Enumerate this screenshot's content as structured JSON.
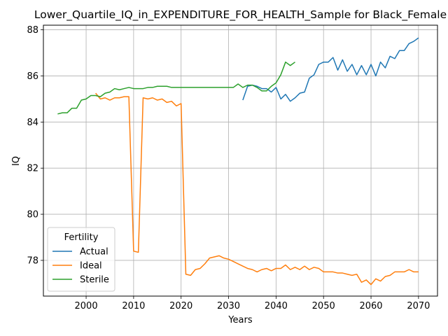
{
  "chart_data": {
    "type": "line",
    "title": "Lower_Quartile_IQ_in_EXPENDITURE_FOR_HEALTH_Sample for Black_Female",
    "xlabel": "Years",
    "ylabel": "IQ",
    "xlim": [
      1991,
      2074
    ],
    "ylim": [
      76.45,
      88.2
    ],
    "x_ticks": [
      2000,
      2010,
      2020,
      2030,
      2040,
      2050,
      2060,
      2070
    ],
    "y_ticks": [
      78,
      80,
      82,
      84,
      86,
      88
    ],
    "grid": true,
    "legend": {
      "title": "Fertility",
      "placement": "lower-left"
    },
    "series": [
      {
        "name": "Actual",
        "color": "#1f77b4",
        "x": [
          2033,
          2034,
          2035,
          2036,
          2037,
          2038,
          2039,
          2040,
          2041,
          2042,
          2043,
          2044,
          2045,
          2046,
          2047,
          2048,
          2049,
          2050,
          2051,
          2052,
          2053,
          2054,
          2055,
          2056,
          2057,
          2058,
          2059,
          2060,
          2061,
          2062,
          2063,
          2064,
          2065,
          2066,
          2067,
          2068,
          2069,
          2070
        ],
        "y": [
          84.95,
          85.55,
          85.6,
          85.55,
          85.45,
          85.45,
          85.3,
          85.5,
          85.0,
          85.2,
          84.9,
          85.05,
          85.25,
          85.3,
          85.9,
          86.05,
          86.5,
          86.6,
          86.6,
          86.8,
          86.25,
          86.7,
          86.2,
          86.5,
          86.05,
          86.45,
          86.05,
          86.5,
          86.0,
          86.6,
          86.35,
          86.85,
          86.75,
          87.1,
          87.1,
          87.4,
          87.5,
          87.65
        ]
      },
      {
        "name": "Ideal",
        "color": "#ff7f0e",
        "x": [
          2002,
          2003,
          2004,
          2005,
          2006,
          2007,
          2008,
          2009,
          2010,
          2011,
          2012,
          2013,
          2014,
          2015,
          2016,
          2017,
          2018,
          2019,
          2020,
          2021,
          2022,
          2023,
          2024,
          2025,
          2026,
          2027,
          2028,
          2029,
          2030,
          2031,
          2032,
          2033,
          2034,
          2035,
          2036,
          2037,
          2038,
          2039,
          2040,
          2041,
          2042,
          2043,
          2044,
          2045,
          2046,
          2047,
          2048,
          2049,
          2050,
          2051,
          2052,
          2053,
          2054,
          2055,
          2056,
          2057,
          2058,
          2059,
          2060,
          2061,
          2062,
          2063,
          2064,
          2065,
          2066,
          2067,
          2068,
          2069,
          2070
        ],
        "y": [
          85.25,
          85.0,
          85.05,
          84.95,
          85.05,
          85.05,
          85.1,
          85.1,
          78.4,
          78.35,
          85.05,
          85.0,
          85.05,
          84.95,
          85.0,
          84.85,
          84.9,
          84.7,
          84.8,
          77.4,
          77.35,
          77.6,
          77.65,
          77.85,
          78.1,
          78.15,
          78.2,
          78.1,
          78.05,
          77.95,
          77.85,
          77.75,
          77.65,
          77.6,
          77.5,
          77.6,
          77.65,
          77.55,
          77.65,
          77.65,
          77.8,
          77.6,
          77.7,
          77.6,
          77.75,
          77.6,
          77.7,
          77.65,
          77.5,
          77.5,
          77.5,
          77.45,
          77.45,
          77.4,
          77.35,
          77.4,
          77.05,
          77.15,
          76.95,
          77.2,
          77.1,
          77.3,
          77.35,
          77.5,
          77.5,
          77.5,
          77.6,
          77.5,
          77.5
        ]
      },
      {
        "name": "Sterile",
        "color": "#2ca02c",
        "x": [
          1994,
          1995,
          1996,
          1997,
          1998,
          1999,
          2000,
          2001,
          2002,
          2003,
          2004,
          2005,
          2006,
          2007,
          2008,
          2009,
          2010,
          2011,
          2012,
          2013,
          2014,
          2015,
          2016,
          2017,
          2018,
          2019,
          2020,
          2021,
          2022,
          2023,
          2024,
          2025,
          2026,
          2027,
          2028,
          2029,
          2030,
          2031,
          2032,
          2033,
          2034,
          2035,
          2036,
          2037,
          2038,
          2039,
          2040,
          2041,
          2042,
          2043,
          2044
        ],
        "y": [
          84.35,
          84.4,
          84.4,
          84.6,
          84.6,
          84.95,
          85.0,
          85.15,
          85.15,
          85.1,
          85.25,
          85.3,
          85.45,
          85.4,
          85.45,
          85.5,
          85.45,
          85.45,
          85.45,
          85.5,
          85.5,
          85.55,
          85.55,
          85.55,
          85.5,
          85.5,
          85.5,
          85.5,
          85.5,
          85.5,
          85.5,
          85.5,
          85.5,
          85.5,
          85.5,
          85.5,
          85.5,
          85.5,
          85.65,
          85.5,
          85.6,
          85.6,
          85.5,
          85.35,
          85.35,
          85.55,
          85.7,
          86.05,
          86.6,
          86.45,
          86.6
        ]
      }
    ]
  }
}
